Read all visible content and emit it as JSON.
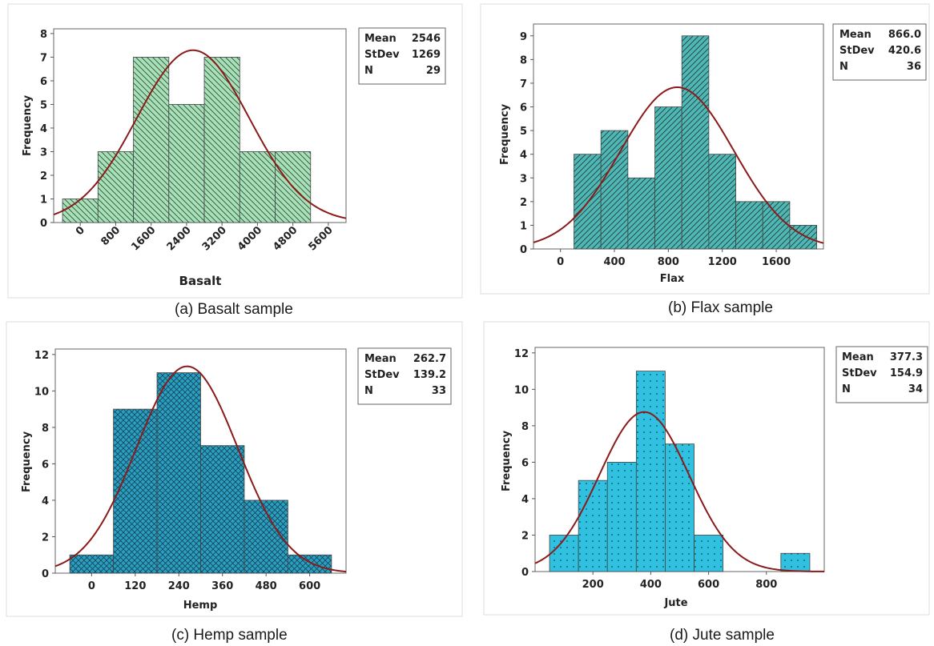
{
  "chart_data": [
    {
      "type": "histogram",
      "caption": "(a)   Basalt sample",
      "xlabel": "Basalt",
      "ylabel": "Frequency",
      "xticks": [
        0,
        800,
        1600,
        2400,
        3200,
        4000,
        4800,
        5600
      ],
      "xtick_rotation": -45,
      "yticks": [
        0,
        1,
        2,
        3,
        4,
        5,
        6,
        7,
        8
      ],
      "xlim": [
        -600,
        6000
      ],
      "ylim": [
        0,
        8.2
      ],
      "bins": [
        {
          "x0": -400,
          "x1": 400,
          "count": 1
        },
        {
          "x0": 400,
          "x1": 1200,
          "count": 3
        },
        {
          "x0": 1200,
          "x1": 2000,
          "count": 7
        },
        {
          "x0": 2000,
          "x1": 2800,
          "count": 5
        },
        {
          "x0": 2800,
          "x1": 3600,
          "count": 7
        },
        {
          "x0": 3600,
          "x1": 4400,
          "count": 3
        },
        {
          "x0": 4400,
          "x1": 5200,
          "count": 3
        }
      ],
      "fill_color": "#a8e0b8",
      "pattern": "diagonal-back",
      "curve_color": "#8b1a1a",
      "stats": {
        "mean_label": "Mean",
        "mean": "2546",
        "stdev_label": "StDev",
        "stdev": "1269",
        "n_label": "N",
        "n": "29"
      },
      "fit": {
        "mean": 2546,
        "sd": 1269,
        "n": 29,
        "binwidth": 800
      }
    },
    {
      "type": "histogram",
      "caption": "(b)   Flax sample",
      "xlabel": "Flax",
      "ylabel": "Frequency",
      "xticks": [
        0,
        400,
        800,
        1200,
        1600
      ],
      "xtick_rotation": 0,
      "yticks": [
        0,
        1,
        2,
        3,
        4,
        5,
        6,
        7,
        8,
        9
      ],
      "xlim": [
        -200,
        1950
      ],
      "ylim": [
        0,
        9.5
      ],
      "bins": [
        {
          "x0": 100,
          "x1": 300,
          "count": 4
        },
        {
          "x0": 300,
          "x1": 500,
          "count": 5
        },
        {
          "x0": 500,
          "x1": 700,
          "count": 3
        },
        {
          "x0": 700,
          "x1": 900,
          "count": 6
        },
        {
          "x0": 900,
          "x1": 1100,
          "count": 9
        },
        {
          "x0": 1100,
          "x1": 1300,
          "count": 4
        },
        {
          "x0": 1300,
          "x1": 1500,
          "count": 2
        },
        {
          "x0": 1500,
          "x1": 1700,
          "count": 2
        },
        {
          "x0": 1700,
          "x1": 1900,
          "count": 1
        }
      ],
      "fill_color": "#4fb7b4",
      "pattern": "diagonal-forward",
      "curve_color": "#8b1a1a",
      "stats": {
        "mean_label": "Mean",
        "mean": "866.0",
        "stdev_label": "StDev",
        "stdev": "420.6",
        "n_label": "N",
        "n": "36"
      },
      "fit": {
        "mean": 866,
        "sd": 420.6,
        "n": 36,
        "binwidth": 200
      }
    },
    {
      "type": "histogram",
      "caption": "(c)   Hemp sample",
      "xlabel": "Hemp",
      "ylabel": "Frequency",
      "xticks": [
        0,
        120,
        240,
        360,
        480,
        600
      ],
      "xtick_rotation": 0,
      "yticks": [
        0,
        2,
        4,
        6,
        8,
        10,
        12
      ],
      "xlim": [
        -100,
        700
      ],
      "ylim": [
        0,
        12.3
      ],
      "bins": [
        {
          "x0": -60,
          "x1": 60,
          "count": 1
        },
        {
          "x0": 60,
          "x1": 180,
          "count": 9
        },
        {
          "x0": 180,
          "x1": 300,
          "count": 11
        },
        {
          "x0": 300,
          "x1": 420,
          "count": 7
        },
        {
          "x0": 420,
          "x1": 540,
          "count": 4
        },
        {
          "x0": 540,
          "x1": 660,
          "count": 1
        }
      ],
      "fill_color": "#2a9fbf",
      "pattern": "crosshatch",
      "curve_color": "#8b1a1a",
      "stats": {
        "mean_label": "Mean",
        "mean": "262.7",
        "stdev_label": "StDev",
        "stdev": "139.2",
        "n_label": "N",
        "n": "33"
      },
      "fit": {
        "mean": 262.7,
        "sd": 139.2,
        "n": 33,
        "binwidth": 120
      }
    },
    {
      "type": "histogram",
      "caption": "(d)   Jute sample",
      "xlabel": "Jute",
      "ylabel": "Frequency",
      "xticks": [
        200,
        400,
        600,
        800
      ],
      "xtick_rotation": 0,
      "yticks": [
        0,
        2,
        4,
        6,
        8,
        10,
        12
      ],
      "xlim": [
        0,
        1000
      ],
      "ylim": [
        0,
        12.3
      ],
      "bins": [
        {
          "x0": 50,
          "x1": 150,
          "count": 2
        },
        {
          "x0": 150,
          "x1": 250,
          "count": 5
        },
        {
          "x0": 250,
          "x1": 350,
          "count": 6
        },
        {
          "x0": 350,
          "x1": 450,
          "count": 11
        },
        {
          "x0": 450,
          "x1": 550,
          "count": 7
        },
        {
          "x0": 550,
          "x1": 650,
          "count": 2
        },
        {
          "x0": 850,
          "x1": 950,
          "count": 1
        }
      ],
      "fill_color": "#30c0e0",
      "pattern": "dots",
      "curve_color": "#8b1a1a",
      "stats": {
        "mean_label": "Mean",
        "mean": "377.3",
        "stdev_label": "StDev",
        "stdev": "154.9",
        "n_label": "N",
        "n": "34"
      },
      "fit": {
        "mean": 377.3,
        "sd": 154.9,
        "n": 34,
        "binwidth": 100
      }
    }
  ]
}
